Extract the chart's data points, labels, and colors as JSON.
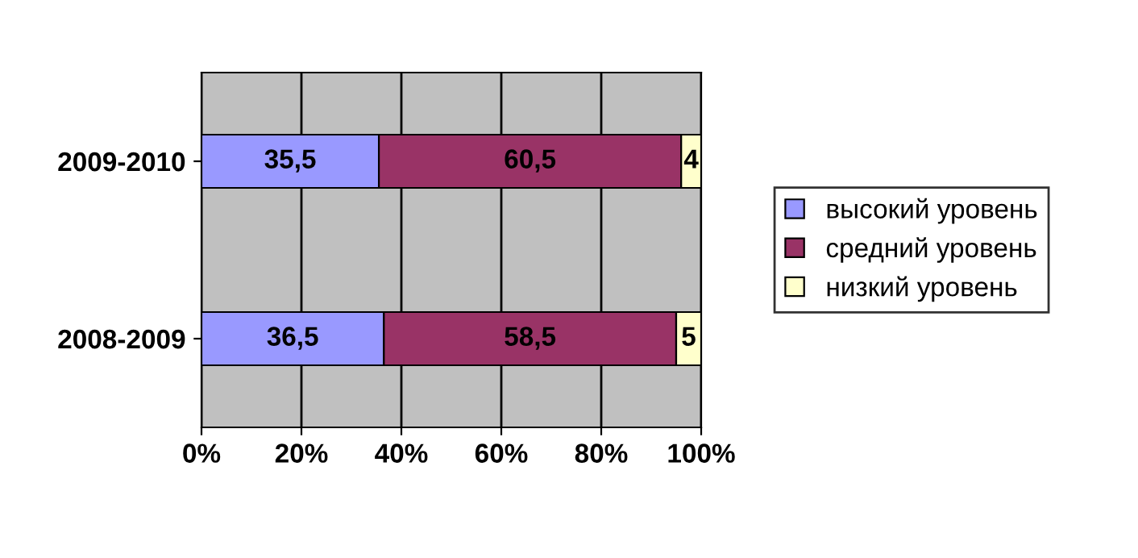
{
  "chart_data": {
    "type": "bar",
    "orientation": "horizontal",
    "stacked": true,
    "categories": [
      "2009-2010",
      "2008-2009"
    ],
    "series": [
      {
        "name": "высокий уровень",
        "color": "#9999ff",
        "values": [
          35.5,
          36.5
        ],
        "value_labels": [
          "35,5",
          "36,5"
        ]
      },
      {
        "name": "средний уровень",
        "color": "#993366",
        "values": [
          60.5,
          58.5
        ],
        "value_labels": [
          "60,5",
          "58,5"
        ]
      },
      {
        "name": "низкий уровень",
        "color": "#ffffcc",
        "values": [
          4,
          5
        ],
        "value_labels": [
          "4",
          "5"
        ]
      }
    ],
    "xlim": [
      0,
      100
    ],
    "xticks": [
      {
        "value": 0,
        "label": "0%"
      },
      {
        "value": 20,
        "label": "20%"
      },
      {
        "value": 40,
        "label": "40%"
      },
      {
        "value": 60,
        "label": "60%"
      },
      {
        "value": 80,
        "label": "80%"
      },
      {
        "value": 100,
        "label": "100%"
      }
    ],
    "grid": "x",
    "legend": "right"
  }
}
